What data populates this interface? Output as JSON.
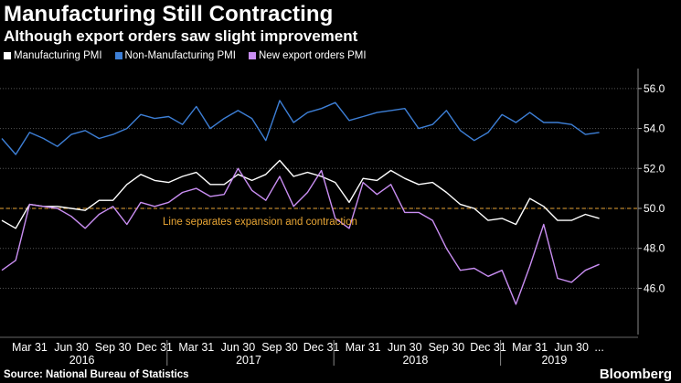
{
  "header": {
    "title": "Manufacturing Still Contracting",
    "subtitle": "Although export orders saw slight improvement"
  },
  "footer": {
    "source": "Source: National Bureau of Statistics",
    "logo": "Bloomberg"
  },
  "colors": {
    "background": "#000000",
    "manufacturing": "#ffffff",
    "non_manufacturing": "#3d7fd6",
    "export_orders": "#c98ef2",
    "threshold": "#e8a534",
    "grid": "#555555",
    "axis_text": "#ffffff"
  },
  "chart_data": {
    "type": "line",
    "title": "Manufacturing Still Contracting",
    "subtitle": "Although export orders saw slight improvement",
    "xlabel": "",
    "ylabel": "",
    "ylim": [
      44.6,
      57.0
    ],
    "y_ticks": [
      "56.0",
      "54.0",
      "52.0",
      "50.0",
      "48.0",
      "46.0"
    ],
    "y_tick_values": [
      56,
      54,
      52,
      50,
      48,
      46
    ],
    "x_ticks": [
      "Mar 31",
      "Jun 30",
      "Sep 30",
      "Dec 31",
      "Mar 31",
      "Jun 30",
      "Sep 30",
      "Dec 31",
      "Mar 31",
      "Jun 30",
      "Sep 30",
      "Dec 31",
      "Mar 31",
      "Jun 30",
      "..."
    ],
    "x_tick_index": [
      2,
      5,
      8,
      11,
      14,
      17,
      20,
      23,
      26,
      29,
      32,
      35,
      38,
      41,
      43
    ],
    "years": [
      {
        "label": "2016",
        "start": 0,
        "end": 11
      },
      {
        "label": "2017",
        "start": 12,
        "end": 23
      },
      {
        "label": "2018",
        "start": 24,
        "end": 35
      },
      {
        "label": "2019",
        "start": 36,
        "end": 43
      }
    ],
    "categories": [
      "2016-01",
      "2016-02",
      "2016-03",
      "2016-04",
      "2016-05",
      "2016-06",
      "2016-07",
      "2016-08",
      "2016-09",
      "2016-10",
      "2016-11",
      "2016-12",
      "2017-01",
      "2017-02",
      "2017-03",
      "2017-04",
      "2017-05",
      "2017-06",
      "2017-07",
      "2017-08",
      "2017-09",
      "2017-10",
      "2017-11",
      "2017-12",
      "2018-01",
      "2018-02",
      "2018-03",
      "2018-04",
      "2018-05",
      "2018-06",
      "2018-07",
      "2018-08",
      "2018-09",
      "2018-10",
      "2018-11",
      "2018-12",
      "2019-01",
      "2019-02",
      "2019-03",
      "2019-04",
      "2019-05",
      "2019-06",
      "2019-07",
      "2019-08"
    ],
    "series": [
      {
        "name": "Manufacturing PMI",
        "color": "#ffffff",
        "values": [
          49.4,
          49.0,
          50.2,
          50.1,
          50.1,
          50.0,
          49.9,
          50.4,
          50.4,
          51.2,
          51.7,
          51.4,
          51.3,
          51.6,
          51.8,
          51.2,
          51.2,
          51.7,
          51.4,
          51.7,
          52.4,
          51.6,
          51.8,
          51.6,
          51.3,
          50.3,
          51.5,
          51.4,
          51.9,
          51.5,
          51.2,
          51.3,
          50.8,
          50.2,
          50.0,
          49.4,
          49.5,
          49.2,
          50.5,
          50.1,
          49.4,
          49.4,
          49.7,
          49.5
        ]
      },
      {
        "name": "Non-Manufacturing PMI",
        "color": "#3d7fd6",
        "values": [
          53.5,
          52.7,
          53.8,
          53.5,
          53.1,
          53.7,
          53.9,
          53.5,
          53.7,
          54.0,
          54.7,
          54.5,
          54.6,
          54.2,
          55.1,
          54.0,
          54.5,
          54.9,
          54.5,
          53.4,
          55.4,
          54.3,
          54.8,
          55.0,
          55.3,
          54.4,
          54.6,
          54.8,
          54.9,
          55.0,
          54.0,
          54.2,
          54.9,
          53.9,
          53.4,
          53.8,
          54.7,
          54.3,
          54.8,
          54.3,
          54.3,
          54.2,
          53.7,
          53.8
        ]
      },
      {
        "name": "New export orders PMI",
        "color": "#c98ef2",
        "values": [
          46.9,
          47.4,
          50.2,
          50.1,
          50.0,
          49.6,
          49.0,
          49.7,
          50.1,
          49.2,
          50.3,
          50.1,
          50.3,
          50.8,
          51.0,
          50.6,
          50.7,
          52.0,
          50.9,
          50.4,
          51.6,
          50.1,
          50.8,
          51.9,
          49.5,
          49.0,
          51.3,
          50.7,
          51.2,
          49.8,
          49.8,
          49.4,
          48.0,
          46.9,
          47.0,
          46.6,
          46.9,
          45.2,
          47.1,
          49.2,
          46.5,
          46.3,
          46.9,
          47.2
        ]
      }
    ],
    "annotations": [
      {
        "text": "Line separates expansion and contraction",
        "y": 50.0
      }
    ],
    "legend_position": "top-left",
    "grid": true
  }
}
